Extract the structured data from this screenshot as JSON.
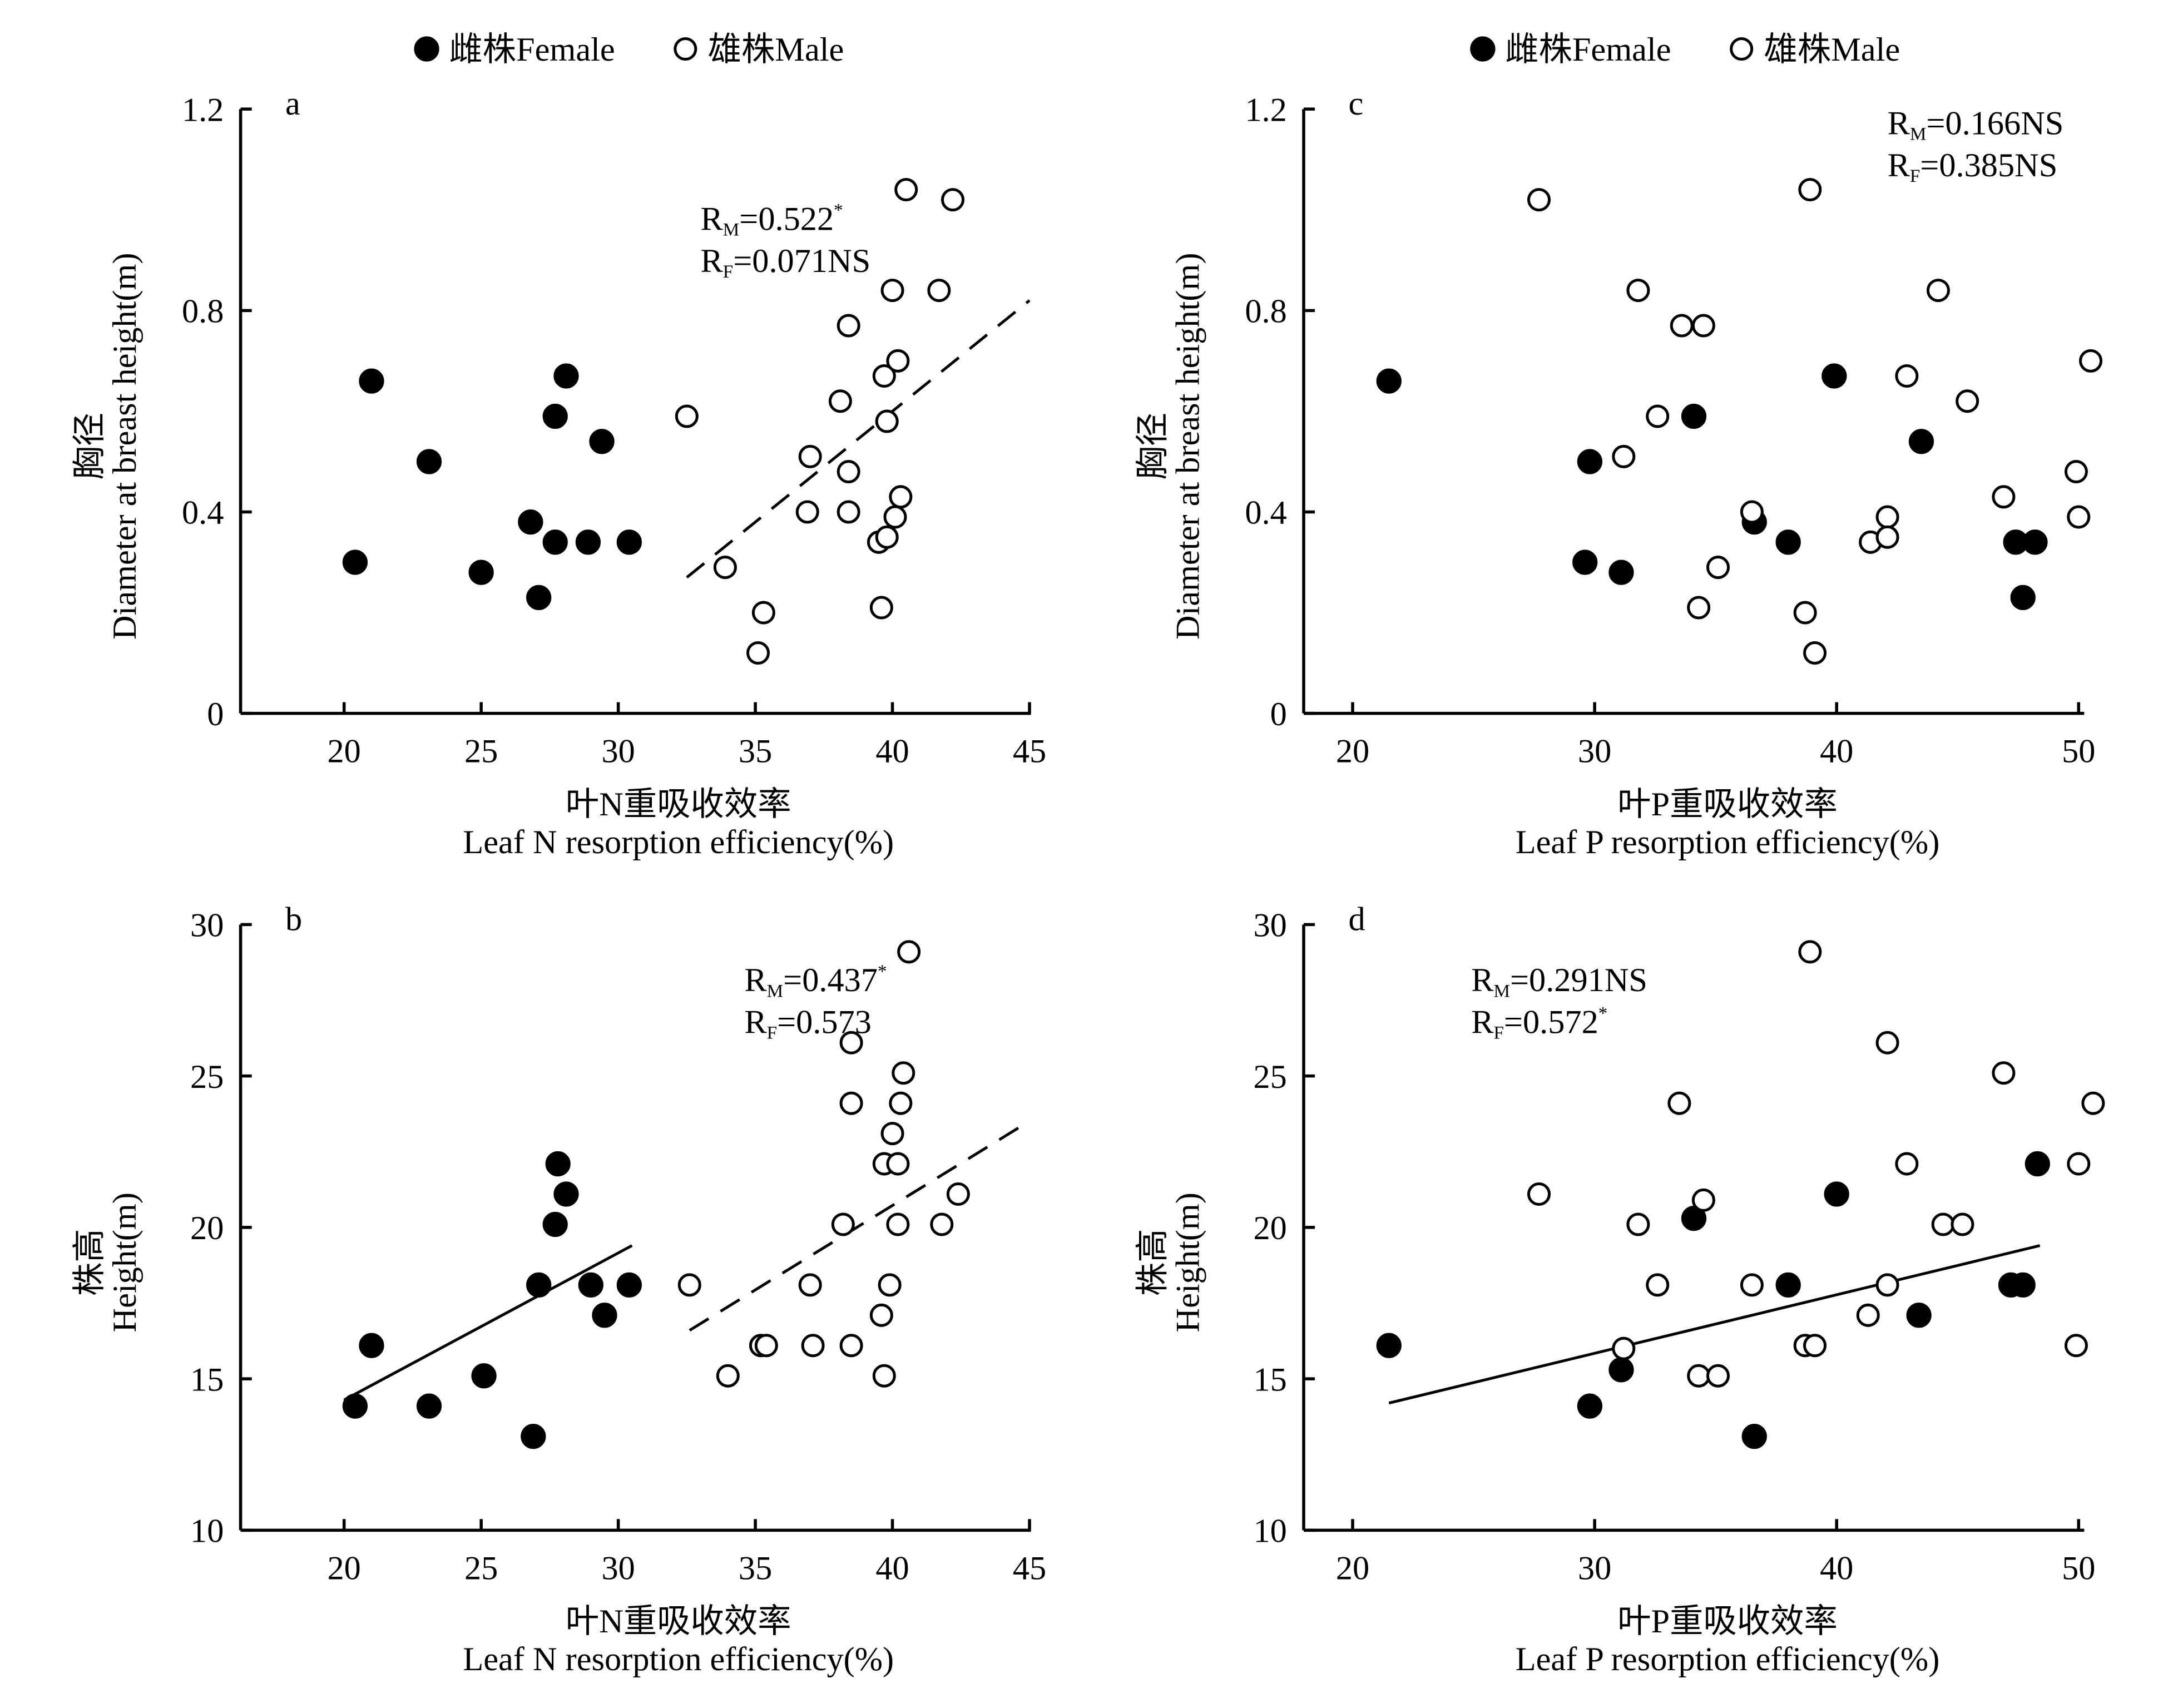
{
  "legend": {
    "female": "雌株Female",
    "male": "雄株Male"
  },
  "chart_data": [
    {
      "type": "scatter",
      "panel": "a",
      "xlabel_cn": "叶N重吸收效率",
      "xlabel": "Leaf N resorption efficiency(%)",
      "ylabel_cn": "胸径",
      "ylabel": "Diameter at breast height(m)",
      "xlim": [
        16,
        45.5
      ],
      "ylim": [
        0,
        1.2
      ],
      "xticks": [
        20,
        25,
        30,
        35,
        40,
        45
      ],
      "yticks": [
        0,
        0.4,
        0.8,
        1.2
      ],
      "ytick_labels": [
        "0",
        "0.4",
        "0.8",
        "1.2"
      ],
      "legend_position": "top-center",
      "annotation": [
        {
          "main": "R",
          "sub": "M",
          "rest": "=0.522",
          "sup": "*"
        },
        {
          "main": "R",
          "sub": "F",
          "rest": "=0.071NS",
          "sup": ""
        }
      ],
      "annotation_anchor": [
        33,
        0.96
      ],
      "series": [
        {
          "name": "Female",
          "marker": "filled",
          "points": [
            [
              20.4,
              0.3
            ],
            [
              21.0,
              0.66
            ],
            [
              23.1,
              0.5
            ],
            [
              25.0,
              0.28
            ],
            [
              26.8,
              0.38
            ],
            [
              27.1,
              0.23
            ],
            [
              27.7,
              0.34
            ],
            [
              27.7,
              0.59
            ],
            [
              28.1,
              0.67
            ],
            [
              28.9,
              0.34
            ],
            [
              29.4,
              0.54
            ],
            [
              30.4,
              0.34
            ]
          ]
        },
        {
          "name": "Male",
          "marker": "open",
          "points": [
            [
              32.5,
              0.59
            ],
            [
              33.9,
              0.29
            ],
            [
              35.1,
              0.12
            ],
            [
              35.3,
              0.2
            ],
            [
              36.9,
              0.4
            ],
            [
              37.0,
              0.51
            ],
            [
              38.1,
              0.62
            ],
            [
              38.4,
              0.77
            ],
            [
              38.4,
              0.4
            ],
            [
              38.4,
              0.48
            ],
            [
              39.5,
              0.34
            ],
            [
              39.6,
              0.21
            ],
            [
              39.7,
              0.67
            ],
            [
              39.8,
              0.58
            ],
            [
              39.8,
              0.35
            ],
            [
              40.0,
              0.84
            ],
            [
              40.1,
              0.39
            ],
            [
              40.2,
              0.7
            ],
            [
              40.3,
              0.43
            ],
            [
              40.5,
              1.04
            ],
            [
              41.7,
              0.84
            ],
            [
              42.2,
              1.02
            ]
          ]
        }
      ],
      "fits": [
        {
          "series": "Male",
          "style": "dashed",
          "from": [
            32.5,
            0.27
          ],
          "to": [
            45.0,
            0.82
          ]
        }
      ]
    },
    {
      "type": "scatter",
      "panel": "b",
      "xlabel_cn": "叶N重吸收效率",
      "xlabel": "Leaf N resorption efficiency(%)",
      "ylabel_cn": "株高",
      "ylabel": "Height(m)",
      "xlim": [
        16,
        45.5
      ],
      "ylim": [
        10,
        30
      ],
      "xticks": [
        20,
        25,
        30,
        35,
        40,
        45
      ],
      "yticks": [
        10,
        15,
        20,
        25,
        30
      ],
      "ytick_labels": [
        "10",
        "15",
        "20",
        "25",
        "30"
      ],
      "annotation": [
        {
          "main": "R",
          "sub": "M",
          "rest": "=0.437",
          "sup": "*"
        },
        {
          "main": "R",
          "sub": "F",
          "rest": "=0.573",
          "sup": ""
        }
      ],
      "annotation_anchor": [
        34.6,
        27.8
      ],
      "series": [
        {
          "name": "Female",
          "marker": "filled",
          "points": [
            [
              20.4,
              14.1
            ],
            [
              21.0,
              16.1
            ],
            [
              23.1,
              14.1
            ],
            [
              25.1,
              15.1
            ],
            [
              26.9,
              13.1
            ],
            [
              27.1,
              18.1
            ],
            [
              27.7,
              20.1
            ],
            [
              27.8,
              22.1
            ],
            [
              28.1,
              21.1
            ],
            [
              29.0,
              18.1
            ],
            [
              29.5,
              17.1
            ],
            [
              30.4,
              18.1
            ]
          ]
        },
        {
          "name": "Male",
          "marker": "open",
          "points": [
            [
              32.6,
              18.1
            ],
            [
              34.0,
              15.1
            ],
            [
              35.2,
              16.1
            ],
            [
              35.4,
              16.1
            ],
            [
              37.0,
              18.1
            ],
            [
              37.1,
              16.1
            ],
            [
              38.2,
              20.1
            ],
            [
              38.5,
              26.1
            ],
            [
              38.5,
              24.1
            ],
            [
              38.5,
              16.1
            ],
            [
              39.6,
              17.1
            ],
            [
              39.7,
              15.1
            ],
            [
              39.7,
              22.1
            ],
            [
              39.9,
              18.1
            ],
            [
              40.0,
              23.1
            ],
            [
              40.2,
              22.1
            ],
            [
              40.2,
              20.1
            ],
            [
              40.3,
              24.1
            ],
            [
              40.4,
              25.1
            ],
            [
              40.6,
              29.1
            ],
            [
              41.8,
              20.1
            ],
            [
              42.4,
              21.1
            ]
          ]
        }
      ],
      "fits": [
        {
          "series": "Female",
          "style": "solid",
          "from": [
            20.0,
            14.3
          ],
          "to": [
            30.5,
            19.4
          ]
        },
        {
          "series": "Male",
          "style": "dashed",
          "from": [
            32.6,
            16.6
          ],
          "to": [
            44.8,
            23.4
          ]
        }
      ]
    },
    {
      "type": "scatter",
      "panel": "c",
      "xlabel_cn": "叶P重吸收效率",
      "xlabel": "Leaf P resorption efficiency(%)",
      "ylabel_cn": "胸径",
      "ylabel": "Diameter at breast height(m)",
      "xlim": [
        18,
        51
      ],
      "ylim": [
        0,
        1.2
      ],
      "xticks": [
        20,
        30,
        40,
        50
      ],
      "yticks": [
        0,
        0.4,
        0.8,
        1.2
      ],
      "ytick_labels": [
        "0",
        "0.4",
        "0.8",
        "1.2"
      ],
      "legend_position": "top-center",
      "annotation": [
        {
          "main": "R",
          "sub": "M",
          "rest": "=0.166NS",
          "sup": ""
        },
        {
          "main": "R",
          "sub": "F",
          "rest": "=0.385NS",
          "sup": ""
        }
      ],
      "annotation_anchor": [
        42.1,
        1.15
      ],
      "series": [
        {
          "name": "Female",
          "marker": "filled",
          "points": [
            [
              21.5,
              0.66
            ],
            [
              29.8,
              0.5
            ],
            [
              29.6,
              0.3
            ],
            [
              31.1,
              0.28
            ],
            [
              34.1,
              0.59
            ],
            [
              36.6,
              0.38
            ],
            [
              38.0,
              0.34
            ],
            [
              39.9,
              0.67
            ],
            [
              43.5,
              0.54
            ],
            [
              47.4,
              0.34
            ],
            [
              48.2,
              0.34
            ],
            [
              47.7,
              0.23
            ]
          ]
        },
        {
          "name": "Male",
          "marker": "open",
          "points": [
            [
              27.7,
              1.02
            ],
            [
              31.2,
              0.51
            ],
            [
              31.8,
              0.84
            ],
            [
              32.6,
              0.59
            ],
            [
              33.6,
              0.77
            ],
            [
              34.5,
              0.77
            ],
            [
              34.3,
              0.21
            ],
            [
              35.1,
              0.29
            ],
            [
              36.5,
              0.4
            ],
            [
              38.7,
              0.2
            ],
            [
              38.9,
              1.04
            ],
            [
              39.1,
              0.12
            ],
            [
              41.4,
              0.34
            ],
            [
              42.1,
              0.39
            ],
            [
              42.1,
              0.35
            ],
            [
              42.9,
              0.67
            ],
            [
              44.2,
              0.84
            ],
            [
              45.4,
              0.62
            ],
            [
              46.9,
              0.43
            ],
            [
              49.9,
              0.48
            ],
            [
              50.0,
              0.39
            ],
            [
              50.5,
              0.7
            ]
          ]
        }
      ],
      "fits": []
    },
    {
      "type": "scatter",
      "panel": "d",
      "xlabel_cn": "叶P重吸收效率",
      "xlabel": "Leaf P resorption efficiency(%)",
      "ylabel_cn": "株高",
      "ylabel": "Height(m)",
      "xlim": [
        18,
        51
      ],
      "ylim": [
        10,
        30
      ],
      "xticks": [
        20,
        30,
        40,
        50
      ],
      "yticks": [
        10,
        15,
        20,
        25,
        30
      ],
      "ytick_labels": [
        "10",
        "15",
        "20",
        "25",
        "30"
      ],
      "annotation": [
        {
          "main": "R",
          "sub": "M",
          "rest": "=0.291NS",
          "sup": ""
        },
        {
          "main": "R",
          "sub": "F",
          "rest": "=0.572",
          "sup": "*"
        }
      ],
      "annotation_anchor": [
        24.9,
        27.8
      ],
      "series": [
        {
          "name": "Female",
          "marker": "filled",
          "points": [
            [
              21.5,
              16.1
            ],
            [
              29.8,
              14.1
            ],
            [
              31.1,
              15.3
            ],
            [
              34.1,
              20.3
            ],
            [
              36.6,
              13.1
            ],
            [
              38.0,
              18.1
            ],
            [
              40.0,
              21.1
            ],
            [
              43.4,
              17.1
            ],
            [
              47.2,
              18.1
            ],
            [
              47.7,
              18.1
            ],
            [
              48.3,
              22.1
            ]
          ]
        },
        {
          "name": "Male",
          "marker": "open",
          "points": [
            [
              27.7,
              21.1
            ],
            [
              31.2,
              16.0
            ],
            [
              31.8,
              20.1
            ],
            [
              32.6,
              18.1
            ],
            [
              33.5,
              24.1
            ],
            [
              34.3,
              15.1
            ],
            [
              34.5,
              20.9
            ],
            [
              35.1,
              15.1
            ],
            [
              36.5,
              18.1
            ],
            [
              38.7,
              16.1
            ],
            [
              38.9,
              29.1
            ],
            [
              39.1,
              16.1
            ],
            [
              41.3,
              17.1
            ],
            [
              42.1,
              26.1
            ],
            [
              42.1,
              18.1
            ],
            [
              42.9,
              22.1
            ],
            [
              44.4,
              20.1
            ],
            [
              45.2,
              20.1
            ],
            [
              46.9,
              25.1
            ],
            [
              49.9,
              16.1
            ],
            [
              50.0,
              22.1
            ],
            [
              50.6,
              24.1
            ]
          ]
        }
      ],
      "fits": [
        {
          "series": "Female",
          "style": "solid",
          "from": [
            21.5,
            14.2
          ],
          "to": [
            48.4,
            19.4
          ]
        }
      ]
    }
  ]
}
